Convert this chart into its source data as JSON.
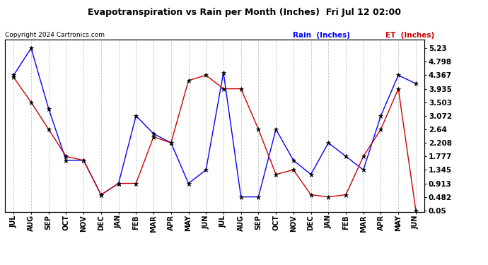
{
  "title": "Evapotranspiration vs Rain per Month (Inches)  Fri Jul 12 02:00",
  "copyright": "Copyright 2024 Cartronics.com",
  "legend_rain": "Rain  (Inches)",
  "legend_et": "ET  (Inches)",
  "months": [
    "JUL",
    "AUG",
    "SEP",
    "OCT",
    "NOV",
    "DEC",
    "JAN",
    "FEB",
    "MAR",
    "APR",
    "MAY",
    "JUN",
    "JUL",
    "AUG",
    "SEP",
    "OCT",
    "NOV",
    "DEC",
    "JAN",
    "FEB",
    "MAR",
    "APR",
    "MAY",
    "JUN"
  ],
  "rain": [
    4.367,
    5.23,
    3.3,
    1.65,
    1.65,
    0.55,
    0.913,
    3.072,
    2.5,
    2.208,
    0.913,
    1.345,
    4.45,
    0.482,
    0.482,
    2.64,
    1.65,
    1.2,
    2.208,
    1.777,
    1.345,
    3.072,
    4.367,
    4.1
  ],
  "et": [
    4.3,
    3.503,
    2.64,
    1.777,
    1.65,
    0.55,
    0.913,
    0.913,
    2.4,
    2.208,
    4.2,
    4.367,
    3.935,
    3.935,
    2.64,
    1.2,
    1.345,
    0.55,
    0.482,
    0.55,
    1.777,
    2.64,
    3.935,
    0.05
  ],
  "ylim_min": 0.0,
  "ylim_max": 5.5,
  "yticks": [
    0.05,
    0.482,
    0.913,
    1.345,
    1.777,
    2.208,
    2.64,
    3.072,
    3.503,
    3.935,
    4.367,
    4.798,
    5.23
  ],
  "rain_color": "#0000ff",
  "et_color": "#cc0000",
  "grid_color": "#c8c8c8",
  "bg_color": "#ffffff",
  "title_color": "#000000",
  "copyright_color": "#000000",
  "legend_rain_color": "#0000ff",
  "legend_et_color": "#cc0000"
}
